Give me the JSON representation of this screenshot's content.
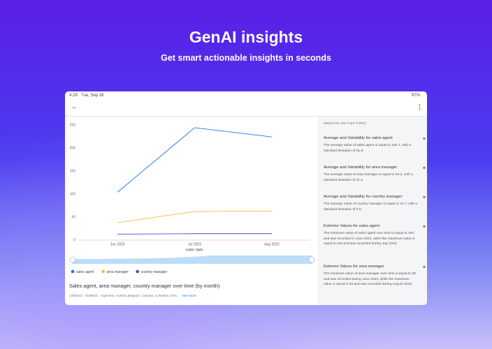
{
  "header": {
    "title": "GenAI insights",
    "subtitle": "Get smart actionable insights in seconds"
  },
  "status_bar": {
    "time": "4:29",
    "date": "Tue, Sep 26",
    "battery": "97%"
  },
  "chart_data": {
    "type": "line",
    "x_label": "order date",
    "categories": [
      "Jun 2023",
      "Jul 2023",
      "Aug 2023"
    ],
    "series": [
      {
        "name": "sales agent",
        "color": "#1a73e8",
        "values": [
          104,
          244,
          224
        ]
      },
      {
        "name": "area manager",
        "color": "#f6b93b",
        "values": [
          38,
          62,
          63
        ]
      },
      {
        "name": "country manager",
        "color": "#5b3fd6",
        "values": [
          13,
          14,
          14
        ]
      }
    ],
    "ylim": [
      0,
      250
    ],
    "yticks": [
      0,
      50,
      100,
      150,
      200,
      250
    ],
    "grid": false,
    "legend": "bottom"
  },
  "chart_caption": {
    "title": "Sales agent, area manager, country manager over time (by month)",
    "filters": "23/06/23 - 31/08/23 · Argentina, Austria, Belgium, Canada, Colombia, Den...",
    "see_more": "See more"
  },
  "insights": {
    "heading": "INSIGHTS ON THIS TOPIC",
    "items": [
      {
        "title": "Average and Variability for sales agent",
        "text": "The average value of sales agent is equal to 190.7, with a standard deviation of 61.8."
      },
      {
        "title": "Average and Variability for area manager",
        "text": "The average value of area manager is equal to 54.3, with a standard deviation of 11.6."
      },
      {
        "title": "Average and Variability for country manager",
        "text": "The average value of country manager is equal to 13.7, with a standard deviation of 0.5."
      },
      {
        "title": "Extreme Values for sales agent",
        "text": "The minimum value of sales agent over time is equal to 104 and was recorded in June 2023, while the maximum value is equal to 244 and was recorded during July 2023."
      },
      {
        "title": "Extreme Values for area manager",
        "text": "The minimum value of area manager over time is equal to 38 and was recorded during June 2023, while the maximum value is equal to 63 and was recorded during August 2023."
      }
    ]
  }
}
